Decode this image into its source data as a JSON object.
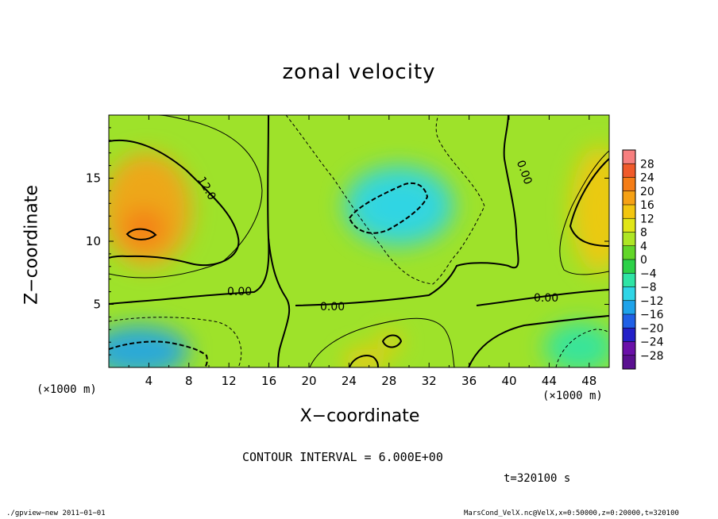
{
  "chart_data": {
    "type": "heatmap",
    "title": "zonal velocity",
    "xlabel": "X−coordinate",
    "ylabel": "Z−coordinate",
    "x_unit": "(×1000 m)",
    "xlim": [
      0,
      50
    ],
    "ylim": [
      0,
      20
    ],
    "x_ticks": [
      "4",
      "8",
      "12",
      "16",
      "20",
      "24",
      "28",
      "32",
      "36",
      "40",
      "44",
      "48"
    ],
    "y_ticks": [
      "5",
      "10",
      "15"
    ],
    "colorbar": {
      "levels": [
        "28",
        "24",
        "20",
        "16",
        "12",
        "8",
        "4",
        "0",
        "−4",
        "−8",
        "−12",
        "−16",
        "−20",
        "−24",
        "−28"
      ],
      "colors": [
        "#f77f7f",
        "#f05a2a",
        "#f57d16",
        "#f6a114",
        "#f3c60f",
        "#e1e617",
        "#aee624",
        "#62d628",
        "#2cd148",
        "#2fe4a5",
        "#2fd5e6",
        "#1ea3ea",
        "#2060e6",
        "#2320c8",
        "#6a10a8",
        "#5a1090"
      ]
    },
    "contour_labels": [
      "12.0",
      "0.00",
      "0.00",
      "0.00",
      "0.00"
    ],
    "contour_interval": "CONTOUR INTERVAL = 6.000E+00",
    "time": "t=320100 s",
    "footer_left": "./gpview−new   2011−01−01",
    "footer_right": "MarsCond_VelX.nc@VelX,x=0:50000,z=0:20000,t=320100",
    "regions": [
      {
        "name": "west-max",
        "cx": 3.8,
        "cz": 12.5,
        "rx": 4.5,
        "rz": 4.5,
        "value": 16
      },
      {
        "name": "west-core",
        "cx": 3.5,
        "cz": 11.0,
        "rx": 2.2,
        "rz": 1.6,
        "value": 20
      },
      {
        "name": "east-max",
        "cx": 49,
        "cz": 12.5,
        "rx": 2.8,
        "rz": 5,
        "value": 14
      },
      {
        "name": "central-min",
        "cx": 29,
        "cz": 12.8,
        "rx": 5.5,
        "rz": 3.2,
        "value": -10
      },
      {
        "name": "central-min-core",
        "cx": 29,
        "cz": 12.8,
        "rx": 3.5,
        "rz": 1.6,
        "value": -12
      },
      {
        "name": "sw-min",
        "cx": 3,
        "cz": 1.3,
        "rx": 5,
        "rz": 2,
        "value": -14
      },
      {
        "name": "se-min",
        "cx": 47,
        "cz": 1.6,
        "rx": 3.5,
        "rz": 2,
        "value": -8
      },
      {
        "name": "bottom-max",
        "cx": 25.5,
        "cz": 0.5,
        "rx": 2,
        "rz": 1,
        "value": 14
      },
      {
        "name": "bottom-max-2",
        "cx": 28,
        "cz": 2,
        "rx": 1.2,
        "rz": 0.8,
        "value": 12
      }
    ]
  }
}
